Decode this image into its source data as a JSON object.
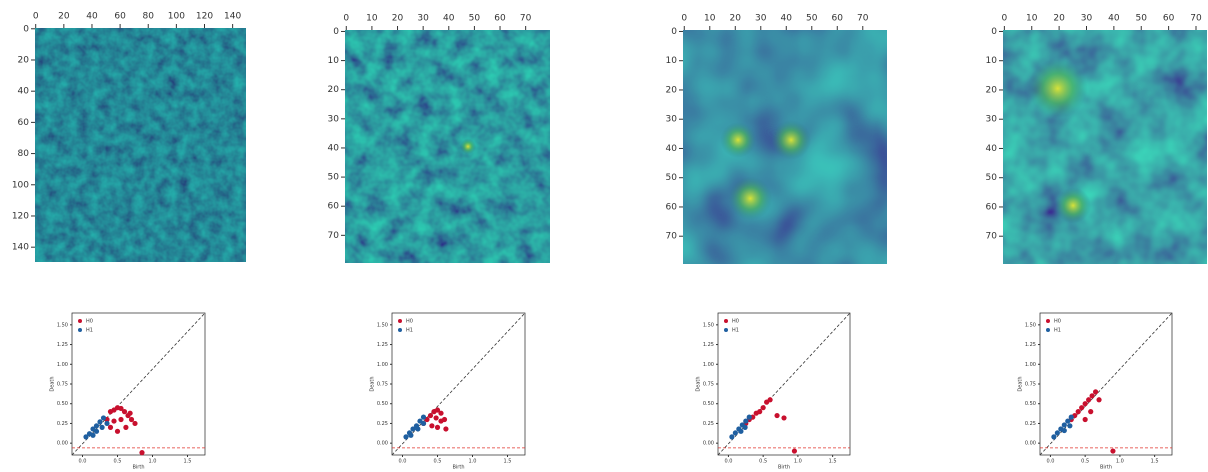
{
  "chart_data": [
    {
      "type": "heatmap",
      "xlim": [
        -0.5,
        149.5
      ],
      "ylim": [
        -0.5,
        149.5
      ],
      "xticks": [
        0,
        20,
        40,
        60,
        80,
        100,
        120,
        140
      ],
      "yticks": [
        0,
        20,
        40,
        60,
        80,
        100,
        120,
        140
      ]
    },
    {
      "type": "heatmap",
      "xlim": [
        -0.5,
        79.5
      ],
      "ylim": [
        -0.5,
        79.5
      ],
      "xticks": [
        0,
        10,
        20,
        30,
        40,
        50,
        60,
        70
      ],
      "yticks": [
        0,
        10,
        20,
        30,
        40,
        50,
        60,
        70
      ]
    },
    {
      "type": "heatmap",
      "xlim": [
        -0.5,
        79.5
      ],
      "ylim": [
        -0.5,
        79.5
      ],
      "xticks": [
        0,
        10,
        20,
        30,
        40,
        50,
        60,
        70
      ],
      "yticks": [
        0,
        10,
        20,
        30,
        40,
        50,
        60,
        70
      ]
    },
    {
      "type": "heatmap",
      "xlim": [
        -0.5,
        79.5
      ],
      "ylim": [
        -0.5,
        79.5
      ],
      "xticks": [
        0,
        10,
        20,
        30,
        40,
        50,
        60,
        70
      ],
      "yticks": [
        0,
        10,
        20,
        30,
        40,
        50,
        60,
        70
      ]
    },
    {
      "type": "scatter",
      "x_label": "Birth",
      "y_label": "Death",
      "xlim": [
        -0.15,
        1.75
      ],
      "ylim": [
        -0.15,
        1.65
      ],
      "xticks": [
        {
          "value": 0,
          "label": "0.0"
        },
        0.5,
        {
          "value": 1,
          "label": "1.0"
        },
        1.5
      ],
      "yticks": [
        {
          "value": 0,
          "label": "0.00"
        },
        0.25,
        {
          "value": 0.5,
          "label": "0.50"
        },
        0.75,
        {
          "value": 1,
          "label": "1.00"
        },
        1.25,
        {
          "value": 1.5,
          "label": "1.50"
        }
      ],
      "series": [
        {
          "name": "H0",
          "color": "#c8102e",
          "x": [
            0.35,
            0.4,
            0.45,
            0.5,
            0.55,
            0.6,
            0.65,
            0.7,
            0.75,
            0.45,
            0.55,
            0.62,
            0.5,
            0.68,
            0.4,
            0.85
          ],
          "values": [
            0.3,
            0.4,
            0.42,
            0.45,
            0.44,
            0.4,
            0.35,
            0.3,
            0.25,
            0.28,
            0.3,
            0.2,
            0.15,
            0.38,
            0.2,
            -0.12
          ]
        },
        {
          "name": "H1",
          "color": "#1f5fa0",
          "x": [
            0.05,
            0.1,
            0.15,
            0.2,
            0.25,
            0.3,
            0.15,
            0.2,
            0.28,
            0.35
          ],
          "values": [
            0.08,
            0.12,
            0.18,
            0.22,
            0.27,
            0.32,
            0.1,
            0.15,
            0.2,
            0.25
          ]
        }
      ]
    },
    {
      "type": "scatter",
      "x_label": "Birth",
      "y_label": "Death",
      "xlim": [
        -0.15,
        1.75
      ],
      "ylim": [
        -0.15,
        1.65
      ],
      "xticks": [
        {
          "value": 0,
          "label": "0.0"
        },
        0.5,
        {
          "value": 1,
          "label": "1.0"
        },
        1.5
      ],
      "yticks": [
        {
          "value": 0,
          "label": "0.00"
        },
        0.25,
        {
          "value": 0.5,
          "label": "0.50"
        },
        0.75,
        {
          "value": 1,
          "label": "1.00"
        },
        1.25,
        {
          "value": 1.5,
          "label": "1.50"
        }
      ],
      "series": [
        {
          "name": "H0",
          "color": "#c8102e",
          "x": [
            0.3,
            0.35,
            0.4,
            0.45,
            0.5,
            0.55,
            0.6,
            0.42,
            0.5,
            0.55,
            0.48,
            0.62
          ],
          "values": [
            0.25,
            0.3,
            0.35,
            0.4,
            0.42,
            0.38,
            0.3,
            0.22,
            0.2,
            0.28,
            0.32,
            0.18
          ]
        },
        {
          "name": "H1",
          "color": "#1f5fa0",
          "x": [
            0.05,
            0.1,
            0.15,
            0.2,
            0.25,
            0.3,
            0.12,
            0.22,
            0.3
          ],
          "values": [
            0.08,
            0.13,
            0.18,
            0.22,
            0.28,
            0.33,
            0.1,
            0.18,
            0.25
          ]
        }
      ]
    },
    {
      "type": "scatter",
      "x_label": "Birth",
      "y_label": "Death",
      "xlim": [
        -0.15,
        1.75
      ],
      "ylim": [
        -0.15,
        1.65
      ],
      "xticks": [
        {
          "value": 0,
          "label": "0.0"
        },
        0.5,
        {
          "value": 1,
          "label": "1.0"
        },
        1.5
      ],
      "yticks": [
        {
          "value": 0,
          "label": "0.00"
        },
        0.25,
        {
          "value": 0.5,
          "label": "0.50"
        },
        0.75,
        {
          "value": 1,
          "label": "1.00"
        },
        1.25,
        {
          "value": 1.5,
          "label": "1.50"
        }
      ],
      "series": [
        {
          "name": "H0",
          "color": "#c8102e",
          "x": [
            0.25,
            0.3,
            0.35,
            0.4,
            0.45,
            0.5,
            0.55,
            0.6,
            0.7,
            0.8,
            0.95
          ],
          "values": [
            0.25,
            0.3,
            0.33,
            0.38,
            0.4,
            0.45,
            0.52,
            0.55,
            0.35,
            0.32,
            -0.1
          ]
        },
        {
          "name": "H1",
          "color": "#1f5fa0",
          "x": [
            0.05,
            0.1,
            0.15,
            0.2,
            0.25,
            0.3,
            0.18,
            0.24
          ],
          "values": [
            0.08,
            0.13,
            0.18,
            0.23,
            0.28,
            0.33,
            0.15,
            0.2
          ]
        }
      ]
    },
    {
      "type": "scatter",
      "x_label": "Birth",
      "y_label": "Death",
      "xlim": [
        -0.15,
        1.75
      ],
      "ylim": [
        -0.15,
        1.65
      ],
      "xticks": [
        {
          "value": 0,
          "label": "0.0"
        },
        0.5,
        {
          "value": 1,
          "label": "1.0"
        },
        1.5
      ],
      "yticks": [
        {
          "value": 0,
          "label": "0.00"
        },
        0.25,
        {
          "value": 0.5,
          "label": "0.50"
        },
        0.75,
        {
          "value": 1,
          "label": "1.00"
        },
        1.25,
        {
          "value": 1.5,
          "label": "1.50"
        }
      ],
      "series": [
        {
          "name": "H0",
          "color": "#c8102e",
          "x": [
            0.3,
            0.35,
            0.4,
            0.45,
            0.5,
            0.55,
            0.6,
            0.65,
            0.7,
            0.5,
            0.58,
            0.9
          ],
          "values": [
            0.3,
            0.35,
            0.4,
            0.45,
            0.5,
            0.55,
            0.6,
            0.65,
            0.55,
            0.3,
            0.4,
            -0.1
          ]
        },
        {
          "name": "H1",
          "color": "#1f5fa0",
          "x": [
            0.05,
            0.1,
            0.15,
            0.2,
            0.25,
            0.3,
            0.2,
            0.28
          ],
          "values": [
            0.08,
            0.13,
            0.18,
            0.23,
            0.28,
            0.33,
            0.16,
            0.22
          ]
        }
      ]
    }
  ]
}
